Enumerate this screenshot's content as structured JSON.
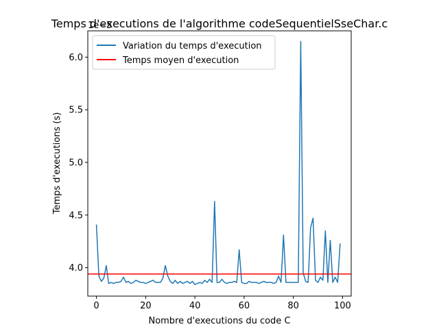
{
  "chart_data": {
    "type": "line",
    "title": "Temps d'executions de l'algorithme codeSequentielSseChar.c",
    "xlabel": "Nombre d'executions du code C",
    "ylabel": "Temps d'executions (s)",
    "y_offset_label": "1e−5",
    "xlim": [
      -3.5,
      103.5
    ],
    "ylim": [
      3.73,
      6.25
    ],
    "xticks": [
      0,
      20,
      40,
      60,
      80,
      100
    ],
    "yticks": [
      4.0,
      4.5,
      5.0,
      5.5,
      6.0
    ],
    "ytick_labels": [
      "4.0",
      "4.5",
      "5.0",
      "5.5",
      "6.0"
    ],
    "grid": false,
    "legend_placement": "top-left",
    "series": [
      {
        "name": "Variation du temps d'execution",
        "color": "#1f77b4",
        "x": [
          0,
          1,
          2,
          3,
          4,
          5,
          6,
          7,
          8,
          9,
          10,
          11,
          12,
          13,
          14,
          15,
          16,
          17,
          18,
          19,
          20,
          21,
          22,
          23,
          24,
          25,
          26,
          27,
          28,
          29,
          30,
          31,
          32,
          33,
          34,
          35,
          36,
          37,
          38,
          39,
          40,
          41,
          42,
          43,
          44,
          45,
          46,
          47,
          48,
          49,
          50,
          51,
          52,
          53,
          54,
          55,
          56,
          57,
          58,
          59,
          60,
          61,
          62,
          63,
          64,
          65,
          66,
          67,
          68,
          69,
          70,
          71,
          72,
          73,
          74,
          75,
          76,
          77,
          78,
          79,
          80,
          81,
          82,
          83,
          84,
          85,
          86,
          87,
          88,
          89,
          90,
          91,
          92,
          93,
          94,
          95,
          96,
          97,
          98,
          99
        ],
        "values": [
          4.41,
          3.92,
          3.87,
          3.9,
          4.02,
          3.85,
          3.86,
          3.85,
          3.86,
          3.86,
          3.87,
          3.91,
          3.86,
          3.87,
          3.85,
          3.86,
          3.88,
          3.87,
          3.86,
          3.86,
          3.85,
          3.86,
          3.87,
          3.88,
          3.86,
          3.86,
          3.86,
          3.9,
          4.02,
          3.92,
          3.87,
          3.85,
          3.88,
          3.85,
          3.87,
          3.85,
          3.86,
          3.87,
          3.85,
          3.87,
          3.84,
          3.85,
          3.86,
          3.85,
          3.88,
          3.86,
          3.89,
          3.86,
          4.63,
          3.86,
          3.86,
          3.89,
          3.86,
          3.85,
          3.86,
          3.86,
          3.87,
          3.86,
          4.17,
          3.86,
          3.85,
          3.85,
          3.87,
          3.86,
          3.86,
          3.86,
          3.85,
          3.86,
          3.87,
          3.86,
          3.86,
          3.86,
          3.85,
          3.86,
          3.92,
          3.86,
          4.31,
          3.86,
          3.86,
          3.86,
          3.86,
          3.86,
          3.86,
          6.15,
          3.95,
          3.87,
          3.86,
          4.38,
          4.47,
          3.88,
          3.86,
          3.91,
          3.88,
          4.35,
          3.86,
          4.26,
          3.86,
          3.91,
          3.86,
          4.23
        ]
      },
      {
        "name": "Temps moyen d'execution",
        "color": "#ff0000",
        "hline": 3.94
      }
    ]
  }
}
